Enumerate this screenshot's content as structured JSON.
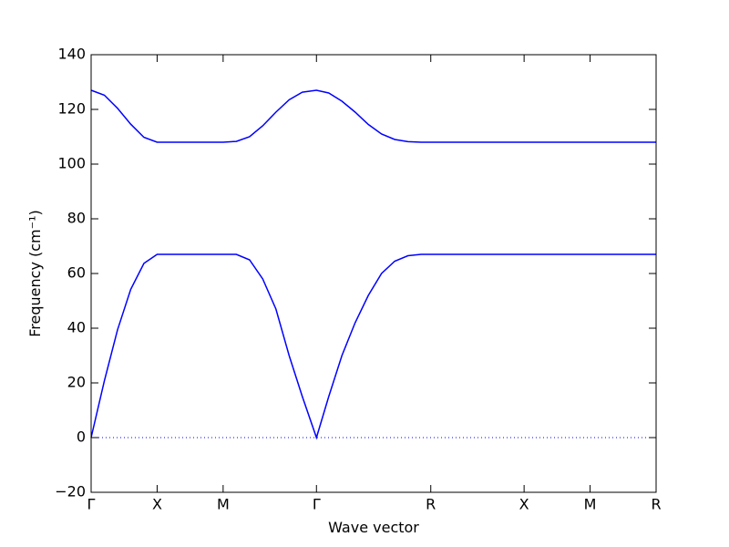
{
  "chart_data": {
    "type": "line",
    "ylabel": "Frequency (cm⁻¹)",
    "xlabel": "Wave vector",
    "x": [
      0,
      0.1,
      0.2,
      0.3,
      0.4,
      0.5,
      0.75,
      1.0,
      1.1,
      1.2,
      1.3,
      1.4,
      1.5,
      1.6,
      1.707,
      1.8,
      1.9,
      2.0,
      2.1,
      2.2,
      2.3,
      2.4,
      2.5,
      2.573,
      3.28,
      3.78,
      4.28
    ],
    "series": [
      {
        "color": "#0000ff",
        "values": [
          0,
          20.7,
          39.4,
          54.2,
          63.7,
          67,
          67,
          67,
          67,
          65,
          58,
          47,
          30,
          15,
          0,
          15,
          30,
          42,
          52,
          60,
          64.5,
          66.5,
          67,
          67,
          67,
          67,
          67
        ]
      },
      {
        "color": "#0000ff",
        "values": [
          127,
          125.2,
          120.4,
          114.6,
          109.8,
          108,
          108,
          108,
          108.3,
          110,
          114,
          119,
          123.5,
          126.3,
          127,
          126,
          123,
          119,
          114.5,
          111,
          109,
          108.2,
          108,
          108,
          108,
          108,
          108
        ]
      }
    ],
    "xlim": [
      0,
      4.28
    ],
    "xticks": [
      {
        "value": 0,
        "label": "Γ"
      },
      {
        "value": 0.5,
        "label": "X"
      },
      {
        "value": 1.0,
        "label": "M"
      },
      {
        "value": 1.707,
        "label": "Γ"
      },
      {
        "value": 2.573,
        "label": "R"
      },
      {
        "value": 3.28,
        "label": "X"
      },
      {
        "value": 3.78,
        "label": "M"
      },
      {
        "value": 4.28,
        "label": "R"
      }
    ],
    "ylim": [
      -20,
      140
    ],
    "yticks": [
      {
        "value": -20,
        "label": "−20"
      },
      0,
      20,
      40,
      60,
      80,
      100,
      120,
      140
    ],
    "zero_line": true,
    "zero_line_color": "#0000ff"
  }
}
